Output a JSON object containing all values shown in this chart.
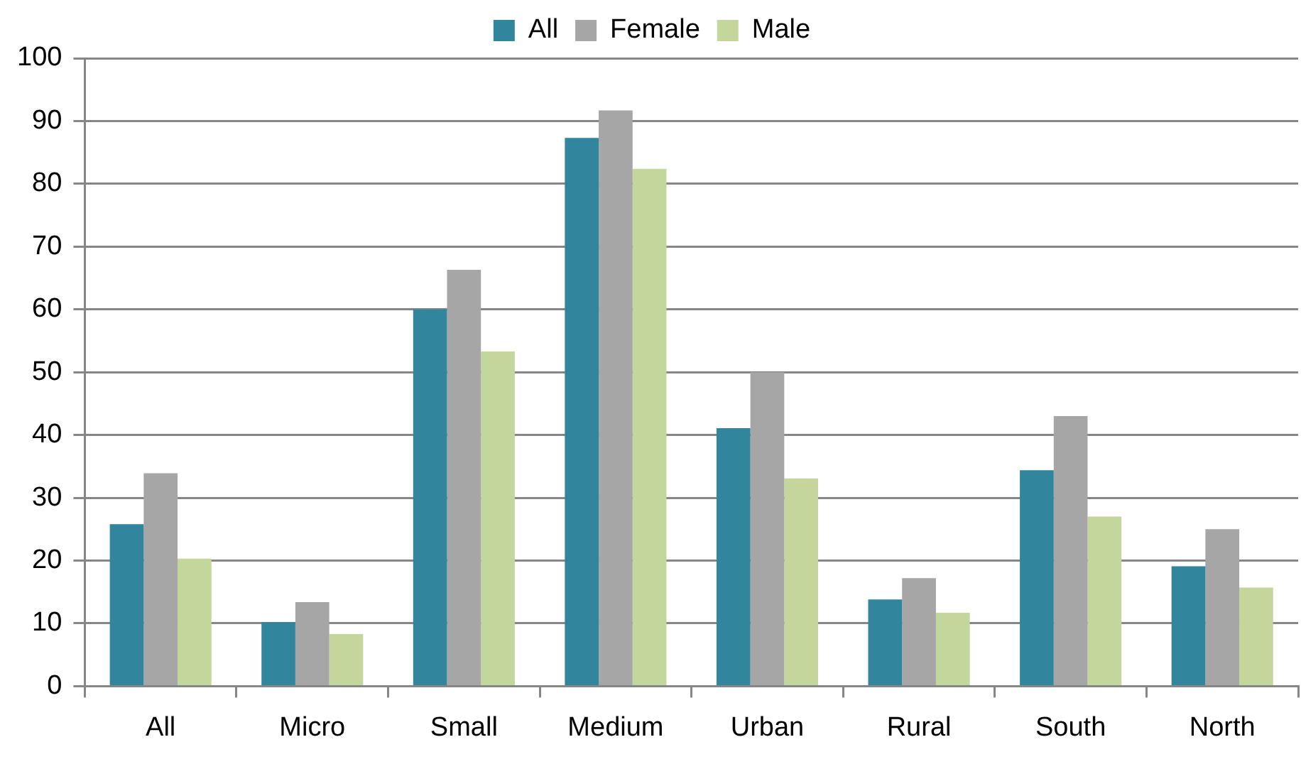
{
  "chart_data": {
    "type": "bar",
    "categories": [
      "All",
      "Micro",
      "Small",
      "Medium",
      "Urban",
      "Rural",
      "South",
      "North"
    ],
    "series": [
      {
        "name": "All",
        "color": "#31859c",
        "values": [
          25.8,
          10.2,
          60,
          87.3,
          41.1,
          13.8,
          34.4,
          19.1
        ]
      },
      {
        "name": "Female",
        "color": "#a6a6a6",
        "values": [
          33.9,
          13.4,
          66.3,
          91.7,
          50,
          17.2,
          43,
          25
        ]
      },
      {
        "name": "Male",
        "color": "#c3d69b",
        "values": [
          20.3,
          8.3,
          53.3,
          82.4,
          33.1,
          11.7,
          27,
          15.7
        ]
      }
    ],
    "ylim": [
      0,
      100
    ],
    "yticks": [
      0,
      10,
      20,
      30,
      40,
      50,
      60,
      70,
      80,
      90,
      100
    ],
    "grid": "y",
    "legend": "top"
  }
}
